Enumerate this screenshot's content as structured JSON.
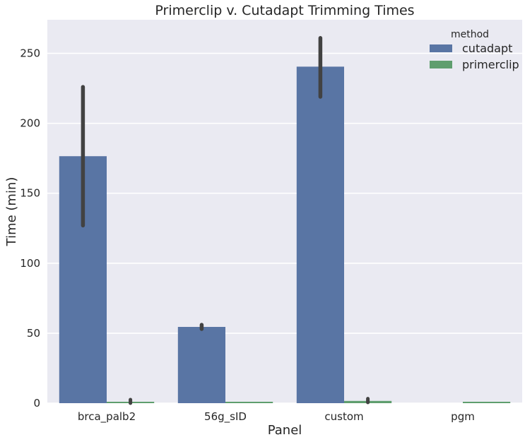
{
  "chart_data": {
    "type": "bar",
    "title": "Primerclip v. Cutadapt Trimming Times",
    "xlabel": "Panel",
    "ylabel": "Time (min)",
    "categories": [
      "brca_palb2",
      "56g_sID",
      "custom",
      "pgm"
    ],
    "ylim": [
      0,
      274
    ],
    "yticks": [
      0,
      50,
      100,
      150,
      200,
      250
    ],
    "grid": true,
    "legend": {
      "title": "method",
      "placement": "top-right"
    },
    "series": [
      {
        "name": "cutadapt",
        "color": "#5975a4",
        "values": [
          176.5,
          54.5,
          240.5,
          null
        ],
        "error_low": [
          127,
          53,
          219,
          null
        ],
        "error_high": [
          226,
          56,
          261,
          null
        ]
      },
      {
        "name": "primerclip",
        "color": "#5f9e6e",
        "values": [
          1.0,
          0.3,
          1.6,
          0.3
        ],
        "error_low": [
          0.5,
          null,
          1.0,
          null
        ],
        "error_high": [
          1.5,
          null,
          2.2,
          null
        ]
      }
    ]
  },
  "colors": {
    "background": "#eaeaf2",
    "grid": "#ffffff",
    "error_bar": "#424242"
  }
}
